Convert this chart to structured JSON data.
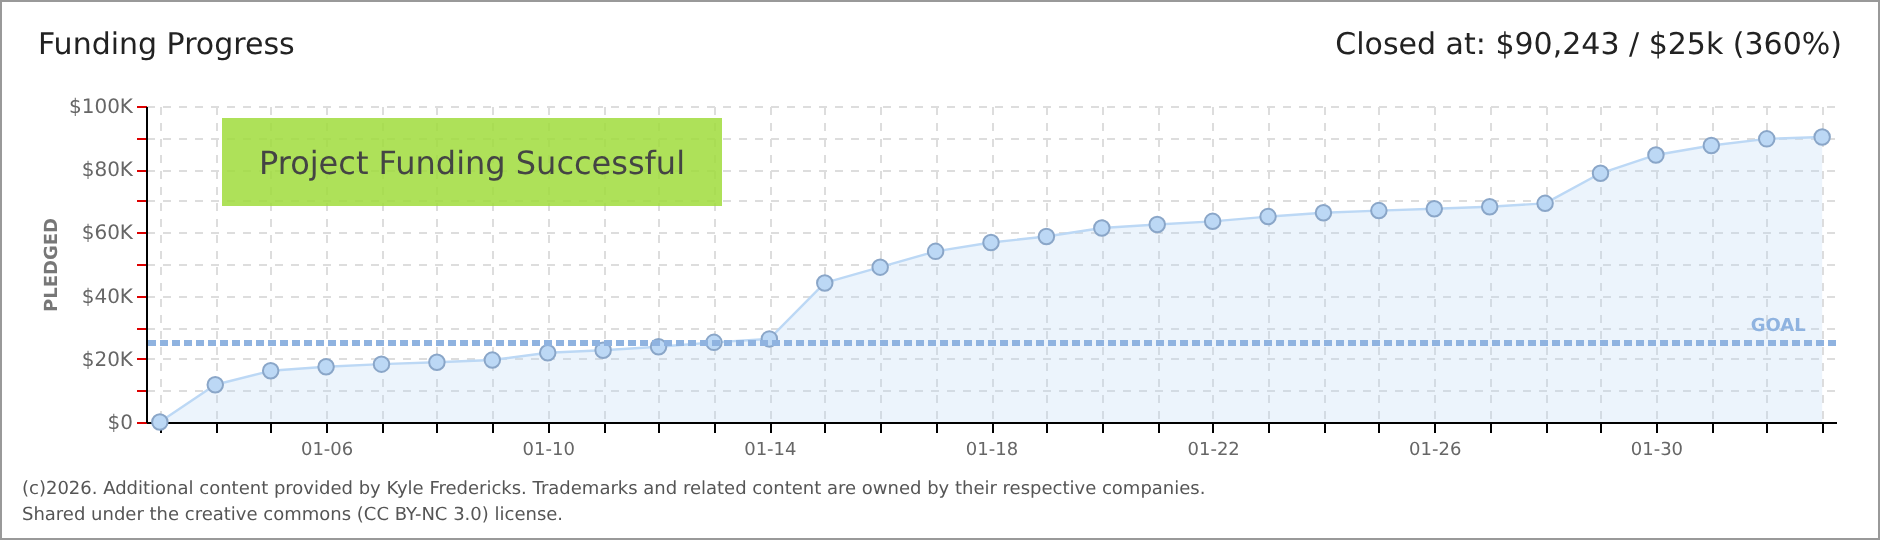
{
  "chart_data": {
    "type": "area",
    "title": "Funding Progress",
    "subtitle": "Closed at: $90,243 / $25k (360%)",
    "ylabel": "PLEDGED",
    "categories": [
      null,
      null,
      null,
      "01-06",
      null,
      null,
      null,
      "01-10",
      null,
      null,
      null,
      "01-14",
      null,
      null,
      null,
      "01-18",
      null,
      null,
      null,
      "01-22",
      null,
      null,
      null,
      "01-26",
      null,
      null,
      null,
      "01-30",
      null,
      null,
      null
    ],
    "series": [
      {
        "color": "#bcd8f5",
        "values": [
          0,
          11800,
          16200,
          17500,
          18300,
          18900,
          19600,
          21900,
          22700,
          23800,
          25200,
          26300,
          44000,
          49000,
          54000,
          56800,
          58700,
          61400,
          62500,
          63500,
          65000,
          66200,
          66900,
          67500,
          68100,
          69200,
          78700,
          84500,
          87500,
          89600,
          90200
        ]
      }
    ],
    "ylim": [
      0,
      100000
    ],
    "yticks": [
      {
        "value": 0,
        "label": "$0"
      },
      {
        "value": 10000,
        "label": null
      },
      {
        "value": 20000,
        "label": "$20K"
      },
      {
        "value": 30000,
        "label": null
      },
      {
        "value": 40000,
        "label": "$40K"
      },
      {
        "value": 50000,
        "label": null
      },
      {
        "value": 60000,
        "label": "$60K"
      },
      {
        "value": 70000,
        "label": null
      },
      {
        "value": 80000,
        "label": "$80K"
      },
      {
        "value": 90000,
        "label": null
      },
      {
        "value": 100000,
        "label": "$100K"
      }
    ],
    "ref_lines": [
      {
        "axis": "y",
        "value": 25000,
        "label": "GOAL",
        "color": "#8fb3e0",
        "line_style": "dashed"
      }
    ],
    "grid": true,
    "marker": "circle",
    "annotations": [
      "Project Funding Successful",
      "(c)2026. Additional content provided by Kyle Fredericks. Trademarks and related content are owned by their respective companies.",
      "Shared under the creative commons (CC BY-NC 3.0) license."
    ]
  }
}
